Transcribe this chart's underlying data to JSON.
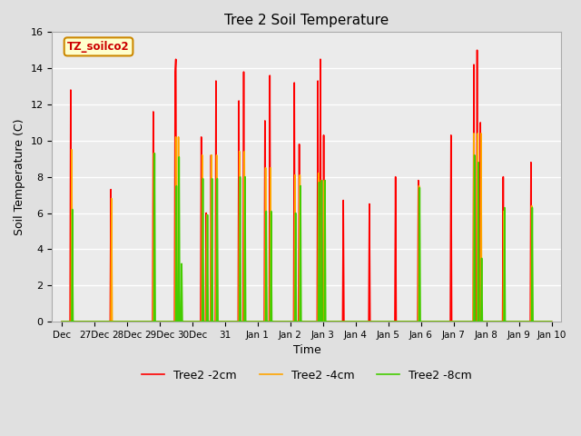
{
  "title": "Tree 2 Soil Temperature",
  "xlabel": "Time",
  "ylabel": "Soil Temperature (C)",
  "annotation": "TZ_soilco2",
  "ylim": [
    0,
    16
  ],
  "xlim": [
    -0.3,
    15.3
  ],
  "figsize": [
    6.4,
    4.8
  ],
  "dpi": 100,
  "background_color": "#e0e0e0",
  "plot_bg_color": "#ebebeb",
  "grid_color": "white",
  "x_labels": [
    "Dec",
    "27Dec",
    "28Dec",
    "29Dec",
    "30Dec",
    "31",
    "Jan 1",
    "Jan 2",
    "Jan 3",
    "Jan 4",
    "Jan 5",
    "Jan 6",
    "Jan 7",
    "Jan 8",
    "Jan 9",
    "Jan 10"
  ],
  "x_positions": [
    0,
    1,
    2,
    3,
    4,
    5,
    6,
    7,
    8,
    9,
    10,
    11,
    12,
    13,
    14,
    15
  ],
  "series": {
    "Tree2 -2cm": {
      "color": "#ff0000",
      "data": [
        [
          0.0,
          0
        ],
        [
          0.25,
          0
        ],
        [
          0.27,
          12.8
        ],
        [
          0.29,
          0
        ],
        [
          0.31,
          0
        ],
        [
          1.0,
          0
        ],
        [
          1.48,
          0
        ],
        [
          1.5,
          7.3
        ],
        [
          1.52,
          0
        ],
        [
          1.54,
          0
        ],
        [
          2.0,
          0
        ],
        [
          2.78,
          0
        ],
        [
          2.8,
          11.6
        ],
        [
          2.82,
          0
        ],
        [
          2.84,
          0
        ],
        [
          3.0,
          0
        ],
        [
          3.45,
          0
        ],
        [
          3.47,
          13.8
        ],
        [
          3.49,
          14.5
        ],
        [
          3.51,
          0
        ],
        [
          3.53,
          0
        ],
        [
          4.0,
          0
        ],
        [
          4.25,
          0
        ],
        [
          4.27,
          10.2
        ],
        [
          4.29,
          0
        ],
        [
          4.4,
          0
        ],
        [
          4.42,
          6.0
        ],
        [
          4.44,
          0
        ],
        [
          4.55,
          0
        ],
        [
          4.57,
          9.2
        ],
        [
          4.59,
          0
        ],
        [
          4.7,
          0
        ],
        [
          4.72,
          13.3
        ],
        [
          4.74,
          0
        ],
        [
          4.76,
          0
        ],
        [
          5.0,
          0
        ],
        [
          5.4,
          0
        ],
        [
          5.42,
          12.2
        ],
        [
          5.44,
          0
        ],
        [
          5.55,
          0
        ],
        [
          5.57,
          13.8
        ],
        [
          5.59,
          0
        ],
        [
          5.61,
          0
        ],
        [
          6.0,
          0
        ],
        [
          6.2,
          0
        ],
        [
          6.22,
          11.1
        ],
        [
          6.24,
          0
        ],
        [
          6.35,
          0
        ],
        [
          6.37,
          13.6
        ],
        [
          6.39,
          0
        ],
        [
          6.41,
          0
        ],
        [
          7.0,
          0
        ],
        [
          7.1,
          0
        ],
        [
          7.12,
          13.2
        ],
        [
          7.14,
          0
        ],
        [
          7.25,
          0
        ],
        [
          7.27,
          9.8
        ],
        [
          7.29,
          0
        ],
        [
          7.31,
          0
        ],
        [
          7.8,
          0
        ],
        [
          7.82,
          0
        ],
        [
          7.84,
          13.3
        ],
        [
          7.86,
          0
        ],
        [
          7.9,
          0
        ],
        [
          7.92,
          14.5
        ],
        [
          7.94,
          0
        ],
        [
          8.0,
          0
        ],
        [
          8.02,
          10.3
        ],
        [
          8.04,
          0
        ],
        [
          8.06,
          0
        ],
        [
          8.5,
          0
        ],
        [
          8.6,
          0
        ],
        [
          8.62,
          6.7
        ],
        [
          8.64,
          0
        ],
        [
          8.66,
          0
        ],
        [
          9.0,
          0
        ],
        [
          9.4,
          0
        ],
        [
          9.42,
          6.5
        ],
        [
          9.44,
          0
        ],
        [
          9.46,
          0
        ],
        [
          10.0,
          0
        ],
        [
          10.2,
          0
        ],
        [
          10.22,
          8.0
        ],
        [
          10.24,
          0
        ],
        [
          10.26,
          0
        ],
        [
          11.0,
          0
        ],
        [
          10.9,
          0
        ],
        [
          10.92,
          7.8
        ],
        [
          10.94,
          0
        ],
        [
          10.96,
          0
        ],
        [
          11.8,
          0
        ],
        [
          11.9,
          0
        ],
        [
          11.92,
          10.3
        ],
        [
          11.94,
          0
        ],
        [
          11.96,
          0
        ],
        [
          12.4,
          0
        ],
        [
          12.6,
          0
        ],
        [
          12.62,
          14.2
        ],
        [
          12.64,
          0
        ],
        [
          12.7,
          0
        ],
        [
          12.72,
          15.0
        ],
        [
          12.74,
          0
        ],
        [
          12.8,
          0
        ],
        [
          12.82,
          11.0
        ],
        [
          12.84,
          0
        ],
        [
          12.86,
          0
        ],
        [
          13.3,
          0
        ],
        [
          13.5,
          0
        ],
        [
          13.52,
          8.0
        ],
        [
          13.54,
          0
        ],
        [
          13.56,
          0
        ],
        [
          14.0,
          0
        ],
        [
          14.35,
          0
        ],
        [
          14.37,
          8.8
        ],
        [
          14.39,
          0
        ],
        [
          15.0,
          0
        ]
      ]
    },
    "Tree2 -4cm": {
      "color": "#ffa500",
      "data": [
        [
          0.0,
          0
        ],
        [
          0.28,
          0
        ],
        [
          0.3,
          9.5
        ],
        [
          0.32,
          0
        ],
        [
          0.34,
          0
        ],
        [
          1.0,
          0
        ],
        [
          1.5,
          0
        ],
        [
          1.52,
          6.8
        ],
        [
          1.54,
          0
        ],
        [
          1.56,
          0
        ],
        [
          2.0,
          0
        ],
        [
          2.8,
          0
        ],
        [
          2.82,
          9.3
        ],
        [
          2.84,
          0
        ],
        [
          2.86,
          0
        ],
        [
          3.0,
          0
        ],
        [
          3.47,
          0
        ],
        [
          3.49,
          10.2
        ],
        [
          3.51,
          0
        ],
        [
          3.55,
          0
        ],
        [
          3.57,
          10.2
        ],
        [
          3.59,
          0
        ],
        [
          3.61,
          0
        ],
        [
          4.0,
          0
        ],
        [
          4.28,
          0
        ],
        [
          4.3,
          9.2
        ],
        [
          4.32,
          0
        ],
        [
          4.42,
          0
        ],
        [
          4.44,
          5.9
        ],
        [
          4.46,
          0
        ],
        [
          4.56,
          0
        ],
        [
          4.58,
          9.2
        ],
        [
          4.6,
          0
        ],
        [
          4.72,
          0
        ],
        [
          4.74,
          9.2
        ],
        [
          4.76,
          0
        ],
        [
          4.78,
          0
        ],
        [
          5.0,
          0
        ],
        [
          5.42,
          0
        ],
        [
          5.44,
          9.4
        ],
        [
          5.46,
          0
        ],
        [
          5.57,
          0
        ],
        [
          5.59,
          9.4
        ],
        [
          5.61,
          0
        ],
        [
          5.63,
          0
        ],
        [
          6.0,
          0
        ],
        [
          6.22,
          0
        ],
        [
          6.24,
          8.5
        ],
        [
          6.26,
          0
        ],
        [
          6.37,
          0
        ],
        [
          6.39,
          8.5
        ],
        [
          6.41,
          0
        ],
        [
          6.43,
          0
        ],
        [
          7.0,
          0
        ],
        [
          7.12,
          0
        ],
        [
          7.14,
          8.1
        ],
        [
          7.16,
          0
        ],
        [
          7.27,
          0
        ],
        [
          7.29,
          8.1
        ],
        [
          7.31,
          0
        ],
        [
          7.33,
          0
        ],
        [
          7.8,
          0
        ],
        [
          7.84,
          0
        ],
        [
          7.86,
          8.2
        ],
        [
          7.88,
          0
        ],
        [
          7.92,
          0
        ],
        [
          7.94,
          7.8
        ],
        [
          7.96,
          0
        ],
        [
          8.02,
          0
        ],
        [
          8.04,
          7.8
        ],
        [
          8.06,
          0
        ],
        [
          8.08,
          0
        ],
        [
          9.0,
          0
        ],
        [
          10.0,
          0
        ],
        [
          11.0,
          0
        ],
        [
          10.92,
          0
        ],
        [
          10.94,
          7.5
        ],
        [
          10.96,
          0
        ],
        [
          10.98,
          0
        ],
        [
          11.8,
          0
        ],
        [
          12.6,
          0
        ],
        [
          12.62,
          10.4
        ],
        [
          12.64,
          0
        ],
        [
          12.72,
          0
        ],
        [
          12.74,
          10.4
        ],
        [
          12.76,
          0
        ],
        [
          12.82,
          0
        ],
        [
          12.84,
          10.4
        ],
        [
          12.86,
          0
        ],
        [
          12.88,
          0
        ],
        [
          13.3,
          0
        ],
        [
          13.52,
          0
        ],
        [
          13.54,
          6.1
        ],
        [
          13.56,
          0
        ],
        [
          13.58,
          0
        ],
        [
          14.0,
          0
        ],
        [
          14.37,
          0
        ],
        [
          14.39,
          6.4
        ],
        [
          14.41,
          0
        ],
        [
          15.0,
          0
        ]
      ]
    },
    "Tree2 -8cm": {
      "color": "#44cc00",
      "data": [
        [
          0.0,
          0
        ],
        [
          0.3,
          0
        ],
        [
          0.32,
          6.2
        ],
        [
          0.34,
          0
        ],
        [
          0.36,
          0
        ],
        [
          1.0,
          0
        ],
        [
          2.0,
          0
        ],
        [
          2.82,
          0
        ],
        [
          2.84,
          9.3
        ],
        [
          2.86,
          0
        ],
        [
          2.88,
          0
        ],
        [
          3.0,
          0
        ],
        [
          3.49,
          0
        ],
        [
          3.51,
          7.5
        ],
        [
          3.53,
          0
        ],
        [
          3.57,
          0
        ],
        [
          3.59,
          9.1
        ],
        [
          3.61,
          0
        ],
        [
          3.65,
          0
        ],
        [
          3.67,
          3.2
        ],
        [
          3.69,
          0
        ],
        [
          3.71,
          0
        ],
        [
          4.0,
          0
        ],
        [
          4.3,
          0
        ],
        [
          4.32,
          7.9
        ],
        [
          4.34,
          0
        ],
        [
          4.44,
          0
        ],
        [
          4.46,
          5.9
        ],
        [
          4.48,
          0
        ],
        [
          4.58,
          0
        ],
        [
          4.6,
          7.9
        ],
        [
          4.62,
          0
        ],
        [
          4.74,
          0
        ],
        [
          4.76,
          7.9
        ],
        [
          4.78,
          0
        ],
        [
          4.8,
          0
        ],
        [
          5.0,
          0
        ],
        [
          5.44,
          0
        ],
        [
          5.46,
          8.0
        ],
        [
          5.48,
          0
        ],
        [
          5.59,
          0
        ],
        [
          5.61,
          8.0
        ],
        [
          5.63,
          0
        ],
        [
          5.65,
          0
        ],
        [
          6.0,
          0
        ],
        [
          6.24,
          0
        ],
        [
          6.26,
          6.1
        ],
        [
          6.28,
          0
        ],
        [
          6.39,
          0
        ],
        [
          6.41,
          6.1
        ],
        [
          6.43,
          0
        ],
        [
          6.45,
          0
        ],
        [
          7.0,
          0
        ],
        [
          7.14,
          0
        ],
        [
          7.16,
          6.0
        ],
        [
          7.18,
          0
        ],
        [
          7.29,
          0
        ],
        [
          7.31,
          7.5
        ],
        [
          7.33,
          0
        ],
        [
          7.35,
          0
        ],
        [
          7.8,
          0
        ],
        [
          7.86,
          0
        ],
        [
          7.88,
          7.7
        ],
        [
          7.9,
          0
        ],
        [
          7.94,
          0
        ],
        [
          7.96,
          7.8
        ],
        [
          7.98,
          0
        ],
        [
          8.04,
          0
        ],
        [
          8.06,
          7.8
        ],
        [
          8.08,
          0
        ],
        [
          8.1,
          0
        ],
        [
          9.0,
          0
        ],
        [
          10.0,
          0
        ],
        [
          10.94,
          0
        ],
        [
          10.96,
          7.4
        ],
        [
          10.98,
          0
        ],
        [
          11.0,
          0
        ],
        [
          11.8,
          0
        ],
        [
          12.62,
          0
        ],
        [
          12.64,
          9.2
        ],
        [
          12.66,
          0
        ],
        [
          12.74,
          0
        ],
        [
          12.76,
          8.8
        ],
        [
          12.78,
          0
        ],
        [
          12.84,
          0
        ],
        [
          12.86,
          3.5
        ],
        [
          12.88,
          0
        ],
        [
          12.9,
          0
        ],
        [
          13.3,
          0
        ],
        [
          13.54,
          0
        ],
        [
          13.56,
          6.3
        ],
        [
          13.58,
          0
        ],
        [
          13.6,
          0
        ],
        [
          14.0,
          0
        ],
        [
          14.39,
          0
        ],
        [
          14.41,
          6.3
        ],
        [
          14.43,
          0
        ],
        [
          15.0,
          0
        ]
      ]
    }
  }
}
